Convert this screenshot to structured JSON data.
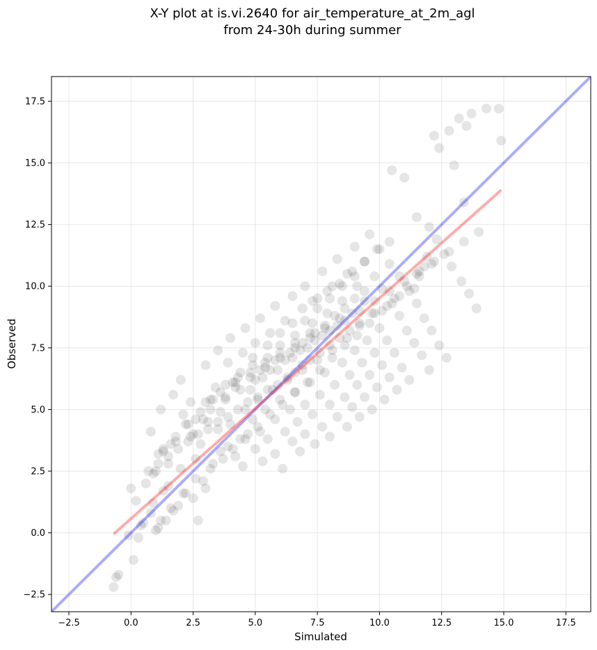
{
  "chart_data": {
    "type": "scatter",
    "title": "X-Y plot at is.vi.2640 for air_temperature_at_2m_agl",
    "subtitle": "from 24-30h during summer",
    "xlabel": "Simulated",
    "ylabel": "Observed",
    "xlim": [
      -3.2,
      18.5
    ],
    "ylim": [
      -3.2,
      18.5
    ],
    "xticks": [
      -2.5,
      0.0,
      2.5,
      5.0,
      7.5,
      10.0,
      12.5,
      15.0,
      17.5
    ],
    "yticks": [
      -2.5,
      0.0,
      2.5,
      5.0,
      7.5,
      10.0,
      12.5,
      15.0,
      17.5
    ],
    "xtick_labels": [
      "−2.5",
      "0.0",
      "2.5",
      "5.0",
      "7.5",
      "10.0",
      "12.5",
      "15.0",
      "17.5"
    ],
    "ytick_labels": [
      "−2.5",
      "0.0",
      "2.5",
      "5.0",
      "7.5",
      "10.0",
      "12.5",
      "15.0",
      "17.5"
    ],
    "grid": true,
    "colors": {
      "points": "#000000",
      "identity": "#0000ff",
      "fit": "#ff0000"
    },
    "series": [
      {
        "type": "scatter",
        "x": [
          -0.7,
          -0.6,
          -0.5,
          -0.1,
          0.0,
          0.1,
          0.3,
          0.5,
          0.8,
          1.0,
          1.1,
          1.2,
          1.3,
          1.5,
          1.7,
          0.2,
          0.6,
          0.9,
          1.4,
          1.9,
          2.2,
          2.5,
          2.7,
          3.0,
          1.0,
          1.3,
          1.6,
          2.0,
          2.4,
          0.8,
          1.1,
          1.5,
          1.8,
          2.3,
          2.6,
          2.9,
          3.3,
          3.6,
          1.2,
          1.7,
          2.1,
          2.5,
          2.8,
          3.1,
          3.5,
          3.9,
          4.2,
          4.5,
          2.0,
          2.4,
          2.9,
          3.2,
          3.6,
          4.0,
          4.4,
          4.7,
          5.0,
          5.3,
          3.0,
          3.4,
          3.8,
          4.1,
          4.6,
          4.9,
          5.2,
          5.5,
          5.8,
          6.1,
          3.5,
          3.9,
          4.3,
          4.8,
          5.1,
          5.4,
          5.8,
          6.2,
          6.5,
          6.8,
          4.0,
          4.5,
          4.9,
          5.3,
          5.7,
          6.0,
          6.4,
          6.7,
          7.0,
          7.4,
          4.6,
          5.0,
          5.5,
          5.9,
          6.3,
          6.6,
          7.0,
          7.3,
          7.7,
          8.0,
          5.2,
          5.6,
          6.0,
          6.5,
          6.9,
          7.2,
          7.6,
          8.0,
          8.3,
          8.7,
          5.8,
          6.2,
          6.6,
          7.1,
          7.5,
          7.8,
          8.2,
          8.6,
          8.9,
          9.2,
          6.5,
          6.9,
          7.3,
          7.7,
          8.1,
          8.5,
          8.8,
          9.1,
          9.4,
          9.7,
          7.0,
          7.5,
          7.9,
          8.3,
          8.7,
          9.0,
          9.3,
          9.6,
          9.9,
          10.2,
          7.7,
          8.1,
          8.5,
          8.9,
          9.2,
          9.5,
          9.8,
          10.1,
          10.4,
          10.7,
          8.3,
          8.7,
          9.1,
          9.4,
          9.7,
          10.0,
          10.3,
          10.6,
          10.9,
          11.2,
          9.0,
          9.4,
          9.8,
          10.1,
          10.5,
          10.8,
          11.1,
          11.4,
          11.7,
          12.0,
          9.6,
          10.0,
          10.4,
          10.8,
          11.2,
          11.5,
          11.8,
          12.1,
          12.4,
          12.7,
          10.5,
          11.0,
          11.5,
          12.0,
          12.3,
          12.6,
          12.9,
          13.3,
          13.6,
          13.9,
          12.2,
          12.4,
          12.8,
          13.0,
          13.2,
          13.4,
          13.5,
          13.7,
          14.3,
          14.8,
          14.9,
          11.9,
          11.8,
          11.5,
          11.4,
          10.8,
          10.3,
          9.8,
          9.2,
          8.8,
          8.4,
          8.0,
          7.6,
          7.2,
          6.9,
          6.6,
          6.3,
          5.9,
          5.5,
          5.1,
          4.7,
          4.3,
          3.9,
          3.5,
          3.1,
          2.7,
          2.3,
          1.9,
          1.5,
          1.1,
          0.7,
          0.4,
          0.9,
          1.6,
          2.1,
          2.6,
          3.2,
          3.7,
          4.1,
          4.6,
          5.1,
          5.6,
          6.1,
          6.6,
          7.1,
          7.6,
          8.1,
          8.6,
          9.1,
          9.6,
          10.1,
          10.6,
          11.1,
          11.6,
          12.1,
          7.3,
          7.9,
          8.4,
          8.9,
          9.4,
          9.9,
          10.4,
          7.0,
          7.5,
          8.0,
          8.5,
          9.0,
          6.0,
          6.5,
          5.5,
          4.9,
          4.4,
          3.8,
          3.3,
          2.8,
          2.2,
          1.8,
          1.3,
          5.2,
          5.8,
          6.4,
          6.9,
          7.4,
          7.8,
          8.2,
          8.6,
          9.0,
          9.4,
          4.2,
          4.8,
          5.4,
          6.0,
          6.6,
          7.2,
          7.8,
          8.4,
          3.0,
          3.6,
          4.2,
          4.8,
          5.4,
          6.0,
          6.6,
          7.2,
          2.6,
          3.2,
          3.8,
          4.4,
          5.0,
          5.6,
          6.2,
          6.8,
          7.4,
          8.0,
          8.6,
          9.2,
          9.8,
          10.4,
          11.0,
          11.6,
          12.2,
          12.8,
          13.4,
          14.0
        ],
        "y": [
          -2.2,
          -1.8,
          -1.7,
          -0.1,
          1.8,
          -1.1,
          -0.2,
          0.4,
          0.8,
          0.1,
          0.2,
          0.5,
          1.7,
          1.9,
          0.9,
          1.3,
          2.0,
          1.2,
          0.5,
          1.1,
          1.6,
          1.4,
          0.5,
          1.8,
          2.5,
          3.3,
          3.6,
          2.6,
          3.9,
          4.1,
          3.2,
          2.8,
          3.7,
          4.4,
          3.0,
          2.1,
          2.8,
          3.3,
          5.0,
          5.6,
          4.8,
          4.0,
          3.6,
          4.5,
          4.2,
          3.5,
          3.1,
          2.7,
          6.2,
          5.3,
          4.6,
          5.4,
          4.9,
          4.4,
          3.8,
          4.0,
          3.4,
          2.9,
          6.8,
          5.9,
          5.5,
          6.1,
          5.0,
          4.6,
          4.1,
          3.8,
          3.2,
          2.6,
          7.4,
          6.9,
          6.3,
          5.8,
          5.4,
          5.0,
          4.6,
          4.1,
          3.7,
          3.3,
          7.9,
          7.3,
          6.8,
          6.3,
          5.8,
          5.4,
          5.0,
          4.5,
          4.0,
          3.6,
          8.3,
          7.7,
          7.1,
          6.6,
          6.2,
          5.7,
          5.2,
          4.8,
          4.3,
          3.9,
          8.7,
          8.1,
          7.6,
          7.1,
          6.6,
          6.1,
          5.6,
          5.2,
          4.7,
          4.3,
          9.2,
          8.6,
          8.0,
          7.5,
          7.0,
          6.5,
          6.0,
          5.5,
          5.1,
          4.7,
          9.6,
          9.1,
          8.5,
          8.0,
          7.4,
          6.9,
          6.4,
          6.0,
          5.5,
          5.0,
          10.0,
          9.5,
          8.9,
          8.4,
          7.9,
          7.4,
          6.9,
          6.4,
          5.9,
          5.4,
          10.6,
          10.0,
          9.4,
          8.9,
          8.4,
          7.8,
          7.3,
          6.8,
          6.3,
          5.8,
          11.1,
          10.5,
          10.0,
          9.4,
          8.9,
          8.3,
          7.8,
          7.3,
          6.7,
          6.2,
          11.6,
          11.0,
          10.4,
          9.9,
          9.3,
          8.8,
          8.2,
          7.7,
          7.2,
          6.6,
          12.1,
          11.5,
          10.9,
          10.4,
          9.8,
          9.3,
          8.7,
          8.2,
          7.6,
          7.1,
          14.7,
          14.4,
          12.8,
          12.4,
          11.9,
          11.3,
          10.8,
          10.2,
          9.7,
          9.1,
          16.1,
          15.6,
          16.3,
          14.9,
          16.8,
          13.4,
          16.5,
          17.0,
          17.2,
          17.2,
          15.9,
          11.2,
          10.8,
          10.5,
          9.9,
          9.6,
          9.2,
          8.9,
          8.5,
          8.2,
          7.9,
          7.6,
          7.3,
          7.0,
          6.8,
          6.5,
          6.3,
          6.0,
          5.8,
          5.5,
          5.3,
          5.0,
          4.7,
          4.5,
          4.2,
          4.0,
          3.7,
          3.4,
          3.1,
          2.8,
          2.5,
          0.3,
          2.4,
          1.0,
          1.6,
          2.2,
          2.6,
          3.0,
          3.4,
          3.8,
          4.3,
          4.8,
          5.2,
          5.7,
          6.1,
          6.6,
          7.1,
          7.6,
          8.0,
          8.5,
          9.0,
          9.5,
          10.0,
          10.4,
          10.9,
          9.4,
          9.8,
          10.1,
          10.6,
          11.0,
          11.5,
          11.8,
          8.6,
          9.1,
          9.5,
          10.0,
          10.4,
          8.1,
          8.5,
          7.6,
          7.1,
          6.5,
          6.0,
          5.4,
          4.9,
          4.4,
          3.9,
          3.4,
          6.6,
          7.0,
          7.3,
          7.7,
          8.1,
          8.4,
          8.8,
          9.1,
          9.5,
          9.8,
          5.9,
          6.3,
          6.7,
          7.1,
          7.5,
          7.9,
          8.3,
          8.7,
          5.3,
          5.7,
          6.1,
          6.5,
          6.9,
          7.3,
          7.7,
          8.1,
          4.6,
          5.0,
          5.4,
          5.8,
          6.2,
          6.6,
          7.0,
          7.4,
          7.8,
          8.2,
          8.6,
          9.0,
          9.4,
          9.8,
          10.2,
          10.6,
          11.0,
          11.4,
          11.8,
          12.2
        ]
      },
      {
        "type": "line",
        "x": [
          -3.2,
          18.5
        ],
        "y": [
          -3.2,
          18.5
        ]
      },
      {
        "type": "line",
        "x": [
          -0.7,
          14.9
        ],
        "y": [
          -0.05,
          13.9
        ]
      }
    ]
  }
}
